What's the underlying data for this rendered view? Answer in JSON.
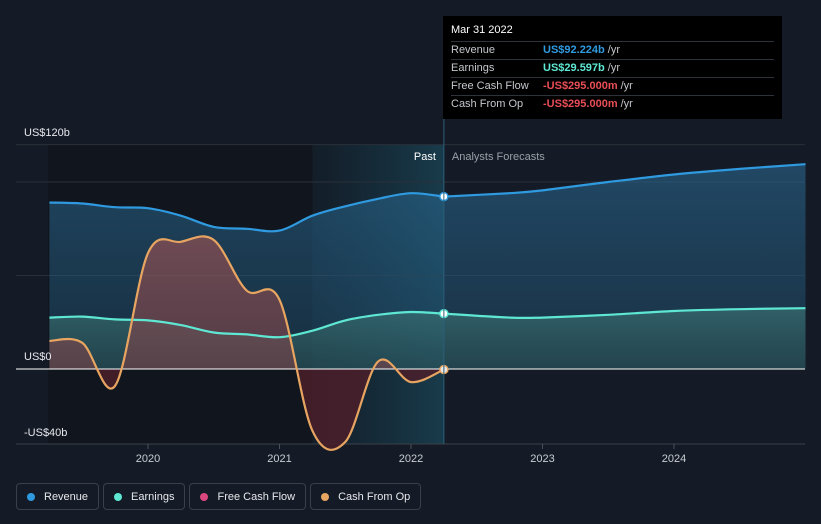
{
  "chart_data": {
    "type": "line",
    "title": "",
    "y_unit": "US$ b",
    "ylim": [
      -40,
      120
    ],
    "y_labels": {
      "top": "US$120b",
      "zero": "US$0",
      "bottom": "-US$40b"
    },
    "x_ticks": [
      {
        "label": "2020",
        "t": 2020.0
      },
      {
        "label": "2021",
        "t": 2021.0
      },
      {
        "label": "2022",
        "t": 2022.0
      },
      {
        "label": "2023",
        "t": 2023.0
      },
      {
        "label": "2024",
        "t": 2024.0
      }
    ],
    "sections": {
      "past_label": "Past",
      "forecast_label": "Analysts Forecasts",
      "past_start": 2021.25,
      "split": 2022.25
    },
    "series": [
      {
        "name": "Revenue",
        "color": "#2f9ae0",
        "points": [
          [
            2019.25,
            89
          ],
          [
            2019.5,
            88.5
          ],
          [
            2019.75,
            86.5
          ],
          [
            2020.0,
            86
          ],
          [
            2020.25,
            82
          ],
          [
            2020.5,
            76
          ],
          [
            2020.75,
            75
          ],
          [
            2021.0,
            74
          ],
          [
            2021.25,
            82
          ],
          [
            2021.5,
            87
          ],
          [
            2021.75,
            91
          ],
          [
            2022.0,
            94
          ],
          [
            2022.25,
            92.2
          ]
        ],
        "forecast": [
          [
            2022.25,
            92.2
          ],
          [
            2022.75,
            94
          ],
          [
            2023.0,
            95.5
          ],
          [
            2023.5,
            100
          ],
          [
            2024.0,
            104
          ],
          [
            2024.5,
            107
          ],
          [
            2025.0,
            109.5
          ]
        ]
      },
      {
        "name": "Earnings",
        "color": "#5ee8d3",
        "points": [
          [
            2019.25,
            27.5
          ],
          [
            2019.5,
            28
          ],
          [
            2019.75,
            26.5
          ],
          [
            2020.0,
            26
          ],
          [
            2020.25,
            23.5
          ],
          [
            2020.5,
            19.5
          ],
          [
            2020.75,
            18.5
          ],
          [
            2021.0,
            17
          ],
          [
            2021.25,
            20.5
          ],
          [
            2021.5,
            26
          ],
          [
            2021.75,
            29
          ],
          [
            2022.0,
            30.5
          ],
          [
            2022.25,
            29.6
          ]
        ],
        "forecast": [
          [
            2022.25,
            29.6
          ],
          [
            2022.75,
            27.5
          ],
          [
            2023.0,
            27.5
          ],
          [
            2023.5,
            29
          ],
          [
            2024.0,
            31
          ],
          [
            2024.5,
            32
          ],
          [
            2025.0,
            32.5
          ]
        ]
      },
      {
        "name": "Free Cash Flow",
        "color": "#d9477e",
        "points": [],
        "forecast": []
      },
      {
        "name": "Cash From Op",
        "color": "#e8a561",
        "points": [
          [
            2019.25,
            15
          ],
          [
            2019.5,
            14
          ],
          [
            2019.75,
            -9
          ],
          [
            2020.0,
            62
          ],
          [
            2020.25,
            68
          ],
          [
            2020.5,
            69
          ],
          [
            2020.75,
            42
          ],
          [
            2021.0,
            37
          ],
          [
            2021.25,
            -33
          ],
          [
            2021.5,
            -39
          ],
          [
            2021.75,
            4
          ],
          [
            2022.0,
            -7
          ],
          [
            2022.25,
            -0.3
          ]
        ],
        "forecast": []
      }
    ]
  },
  "tooltip": {
    "date": "Mar 31 2022",
    "rows": [
      {
        "label": "Revenue",
        "value": "US$92.224b",
        "unit": "/yr",
        "color": "#2f9ae0"
      },
      {
        "label": "Earnings",
        "value": "US$29.597b",
        "unit": "/yr",
        "color": "#5ee8d3"
      },
      {
        "label": "Free Cash Flow",
        "value": "-US$295.000m",
        "unit": "/yr",
        "color": "#e84e56"
      },
      {
        "label": "Cash From Op",
        "value": "-US$295.000m",
        "unit": "/yr",
        "color": "#e84e56"
      }
    ]
  },
  "legend": [
    {
      "label": "Revenue",
      "color": "#2f9ae0"
    },
    {
      "label": "Earnings",
      "color": "#5ee8d3"
    },
    {
      "label": "Free Cash Flow",
      "color": "#d9477e"
    },
    {
      "label": "Cash From Op",
      "color": "#e8a561"
    }
  ]
}
